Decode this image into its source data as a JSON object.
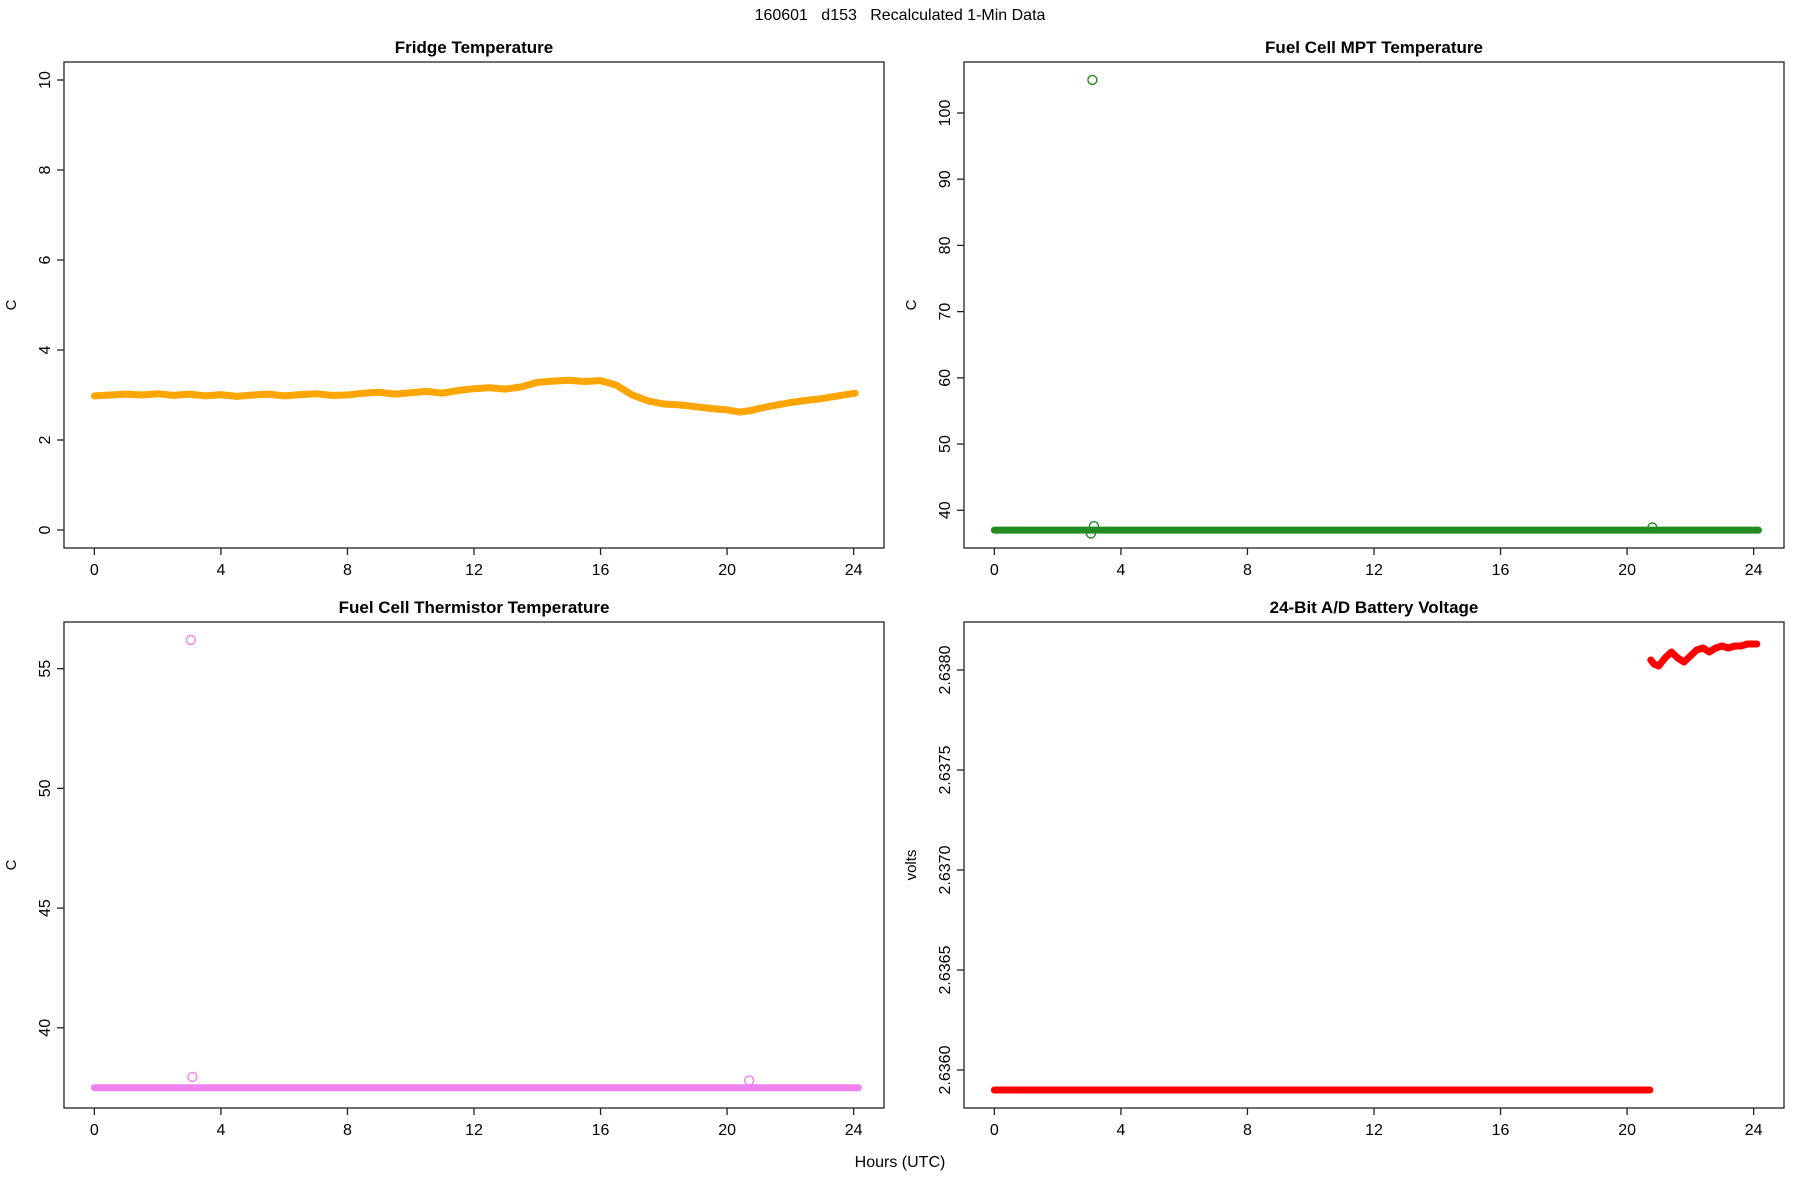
{
  "figure_title": "160601   d153   Recalculated 1-Min Data",
  "x_axis_label": "Hours (UTC)",
  "colors": {
    "fridge": "#FFA500",
    "mpt": "#228B22",
    "thermistor": "#EE82EE",
    "battery": "#FF0000",
    "axis": "#222222"
  },
  "chart_data": [
    {
      "id": "fridge-temperature",
      "type": "line",
      "title": "Fridge Temperature",
      "ylabel": "C",
      "color": "#FFA500",
      "x_ticks": [
        0,
        4,
        8,
        12,
        16,
        20,
        24
      ],
      "y_ticks": [
        0,
        2,
        4,
        6,
        8,
        10
      ],
      "xlim": [
        -0.96,
        24.96
      ],
      "ylim": [
        -0.4,
        10.4
      ],
      "line_width": 7,
      "series": [
        {
          "name": "fridge-temp",
          "points": [
            [
              0,
              2.98
            ],
            [
              0.5,
              3.0
            ],
            [
              1,
              3.02
            ],
            [
              1.5,
              3.0
            ],
            [
              2,
              3.03
            ],
            [
              2.5,
              2.99
            ],
            [
              3,
              3.02
            ],
            [
              3.5,
              2.98
            ],
            [
              4,
              3.01
            ],
            [
              4.5,
              2.97
            ],
            [
              5,
              3.0
            ],
            [
              5.5,
              3.02
            ],
            [
              6,
              2.98
            ],
            [
              6.5,
              3.01
            ],
            [
              7,
              3.03
            ],
            [
              7.5,
              2.99
            ],
            [
              8,
              3.0
            ],
            [
              8.5,
              3.04
            ],
            [
              9,
              3.06
            ],
            [
              9.5,
              3.02
            ],
            [
              10,
              3.05
            ],
            [
              10.5,
              3.08
            ],
            [
              11,
              3.04
            ],
            [
              11.5,
              3.1
            ],
            [
              12,
              3.14
            ],
            [
              12.5,
              3.16
            ],
            [
              13,
              3.13
            ],
            [
              13.5,
              3.18
            ],
            [
              14,
              3.28
            ],
            [
              14.5,
              3.31
            ],
            [
              15,
              3.33
            ],
            [
              15.5,
              3.3
            ],
            [
              16,
              3.32
            ],
            [
              16.5,
              3.22
            ],
            [
              17,
              3.0
            ],
            [
              17.5,
              2.87
            ],
            [
              18,
              2.8
            ],
            [
              18.5,
              2.78
            ],
            [
              19,
              2.74
            ],
            [
              19.5,
              2.7
            ],
            [
              20,
              2.67
            ],
            [
              20.4,
              2.62
            ],
            [
              20.8,
              2.66
            ],
            [
              21,
              2.7
            ],
            [
              21.5,
              2.77
            ],
            [
              22,
              2.83
            ],
            [
              22.5,
              2.88
            ],
            [
              23,
              2.92
            ],
            [
              23.5,
              2.98
            ],
            [
              24.05,
              3.04
            ]
          ]
        }
      ],
      "outlier_points": []
    },
    {
      "id": "fuel-cell-mpt-temperature",
      "type": "line",
      "title": "Fuel Cell MPT Temperature",
      "ylabel": "C",
      "color": "#228B22",
      "x_ticks": [
        0,
        4,
        8,
        12,
        16,
        20,
        24
      ],
      "y_ticks": [
        40,
        50,
        60,
        70,
        80,
        90,
        100
      ],
      "xlim": [
        -0.96,
        24.96
      ],
      "ylim": [
        34.3,
        107.7
      ],
      "line_width": 7,
      "series": [
        {
          "name": "mpt-temp",
          "points": [
            [
              0,
              37
            ],
            [
              6,
              37
            ],
            [
              12,
              37
            ],
            [
              18,
              37
            ],
            [
              24.15,
              37
            ]
          ]
        }
      ],
      "outlier_points": [
        [
          3.1,
          105
        ],
        [
          3.05,
          36.5
        ],
        [
          3.15,
          37.6
        ],
        [
          20.8,
          37.4
        ]
      ]
    },
    {
      "id": "fuel-cell-thermistor-temperature",
      "type": "line",
      "title": "Fuel Cell Thermistor Temperature",
      "ylabel": "C",
      "color": "#EE82EE",
      "x_ticks": [
        0,
        4,
        8,
        12,
        16,
        20,
        24
      ],
      "y_ticks": [
        40,
        45,
        50,
        55
      ],
      "xlim": [
        -0.96,
        24.96
      ],
      "ylim": [
        36.65,
        56.95
      ],
      "line_width": 7,
      "series": [
        {
          "name": "thermistor-temp",
          "points": [
            [
              0,
              37.5
            ],
            [
              6,
              37.5
            ],
            [
              12,
              37.5
            ],
            [
              18,
              37.5
            ],
            [
              24.15,
              37.5
            ]
          ]
        }
      ],
      "outlier_points": [
        [
          3.05,
          56.2
        ],
        [
          3.1,
          37.95
        ],
        [
          20.7,
          37.8
        ]
      ]
    },
    {
      "id": "battery-voltage",
      "type": "line",
      "title": "24-Bit A/D Battery Voltage",
      "ylabel": "volts",
      "color": "#FF0000",
      "x_ticks": [
        0,
        4,
        8,
        12,
        16,
        20,
        24
      ],
      "y_ticks": [
        2.636,
        2.6365,
        2.637,
        2.6375,
        2.638
      ],
      "y_tick_labels": [
        "2.6360",
        "2.6365",
        "2.6370",
        "2.6375",
        "2.6380"
      ],
      "xlim": [
        -0.96,
        24.96
      ],
      "ylim": [
        2.63581,
        2.63824
      ],
      "line_width": 7,
      "series": [
        {
          "name": "battery-voltage-low",
          "points": [
            [
              0,
              2.6359
            ],
            [
              5,
              2.6359
            ],
            [
              10,
              2.6359
            ],
            [
              15,
              2.6359
            ],
            [
              20.72,
              2.6359
            ]
          ]
        },
        {
          "name": "battery-voltage-high",
          "points": [
            [
              20.75,
              2.63805
            ],
            [
              20.85,
              2.63803
            ],
            [
              21.0,
              2.63802
            ],
            [
              21.2,
              2.63806
            ],
            [
              21.4,
              2.63809
            ],
            [
              21.6,
              2.63806
            ],
            [
              21.8,
              2.63804
            ],
            [
              22.0,
              2.63807
            ],
            [
              22.2,
              2.6381
            ],
            [
              22.4,
              2.63811
            ],
            [
              22.6,
              2.63809
            ],
            [
              22.8,
              2.63811
            ],
            [
              23.0,
              2.63812
            ],
            [
              23.2,
              2.63811
            ],
            [
              23.4,
              2.63812
            ],
            [
              23.6,
              2.63812
            ],
            [
              23.8,
              2.63813
            ],
            [
              24.1,
              2.63813
            ]
          ]
        }
      ],
      "outlier_points": []
    }
  ]
}
